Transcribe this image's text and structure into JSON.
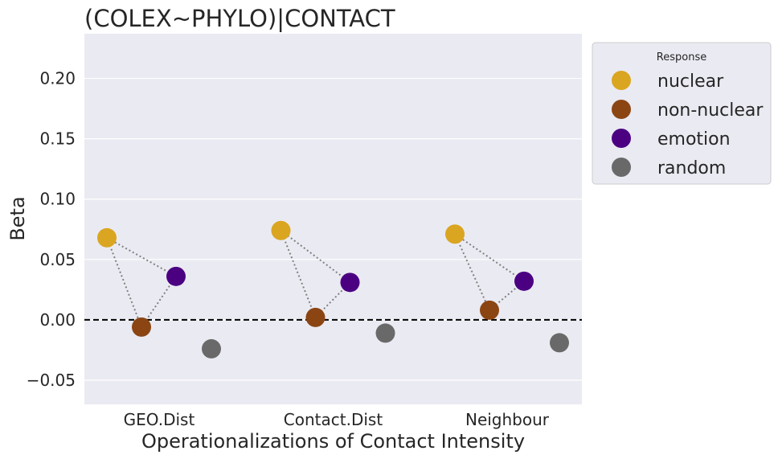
{
  "chart_data": {
    "type": "scatter",
    "title": "(COLEX~PHYLO)|CONTACT",
    "xlabel": "Operationalizations of Contact Intensity",
    "ylabel": "Beta",
    "categories": [
      "GEO.Dist",
      "Contact.Dist",
      "Neighbour"
    ],
    "ylim": [
      -0.07,
      0.237
    ],
    "yticks": [
      "−0.05",
      "0.00",
      "0.05",
      "0.10",
      "0.15",
      "0.20"
    ],
    "ytick_values": [
      -0.05,
      0.0,
      0.05,
      0.1,
      0.15,
      0.2
    ],
    "reference_line": 0.0,
    "grid": true,
    "legend": {
      "title": "Response",
      "placement": "outside-right-top"
    },
    "series": [
      {
        "name": "nuclear",
        "color": "#daa520",
        "values": [
          0.068,
          0.074,
          0.071
        ]
      },
      {
        "name": "non-nuclear",
        "color": "#8b4513",
        "values": [
          -0.006,
          0.002,
          0.008
        ]
      },
      {
        "name": "emotion",
        "color": "#4b0082",
        "values": [
          0.036,
          0.031,
          0.032
        ]
      },
      {
        "name": "random",
        "color": "#696969",
        "values": [
          -0.024,
          -0.011,
          -0.019
        ]
      }
    ],
    "connected_series": [
      "nuclear",
      "non-nuclear",
      "emotion"
    ]
  }
}
